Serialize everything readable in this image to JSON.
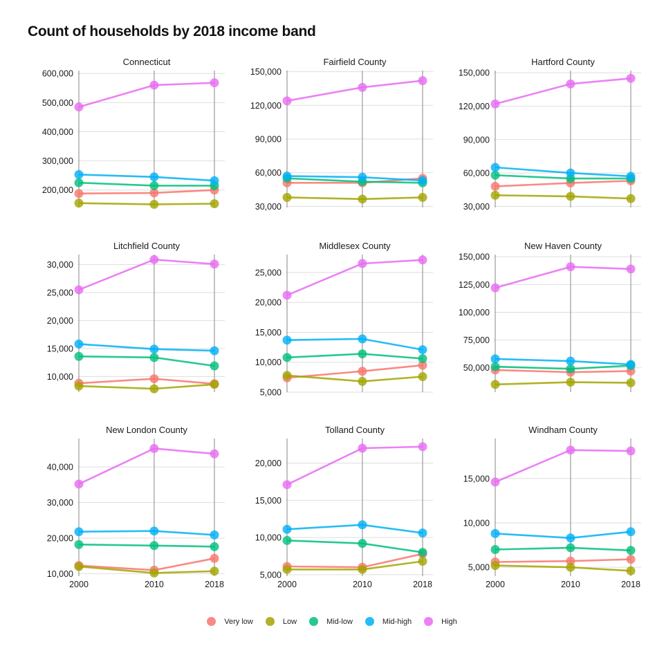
{
  "title": "Count of households by 2018 income band",
  "legend": [
    {
      "name": "Very low",
      "color": "#F8766D"
    },
    {
      "name": "Low",
      "color": "#A3A500"
    },
    {
      "name": "Mid-low",
      "color": "#00BF7D"
    },
    {
      "name": "Mid-high",
      "color": "#00B0F6"
    },
    {
      "name": "High",
      "color": "#E76BF3"
    }
  ],
  "chart_data": {
    "type": "line",
    "layout": "facet_wrap 3x3, free y scales",
    "x": [
      "2000",
      "2010",
      "2018"
    ],
    "legend_position": "bottom",
    "grid": "horizontal major gridlines, vertical lines at x ticks",
    "panels": [
      {
        "name": "Connecticut",
        "yticks": [
          200000,
          300000,
          400000,
          500000,
          600000
        ],
        "ylim": [
          140000,
          610000
        ],
        "series": [
          {
            "name": "Very low",
            "values": [
              188000,
              190000,
              200000
            ]
          },
          {
            "name": "Low",
            "values": [
              155000,
              151000,
              153000
            ]
          },
          {
            "name": "Mid-low",
            "values": [
              225000,
              215000,
              215000
            ]
          },
          {
            "name": "Mid-high",
            "values": [
              253000,
              245000,
              232000
            ]
          },
          {
            "name": "High",
            "values": [
              485000,
              560000,
              568000
            ]
          }
        ]
      },
      {
        "name": "Fairfield County",
        "yticks": [
          30000,
          60000,
          90000,
          120000,
          150000
        ],
        "ylim": [
          29000,
          151000
        ],
        "series": [
          {
            "name": "Very low",
            "values": [
              51000,
              51000,
              55000
            ]
          },
          {
            "name": "Low",
            "values": [
              38000,
              36500,
              38000
            ]
          },
          {
            "name": "Mid-low",
            "values": [
              55000,
              52000,
              51000
            ]
          },
          {
            "name": "Mid-high",
            "values": [
              57000,
              56000,
              53000
            ]
          },
          {
            "name": "High",
            "values": [
              124000,
              136000,
              142000
            ]
          }
        ]
      },
      {
        "name": "Hartford County",
        "yticks": [
          30000,
          60000,
          90000,
          120000,
          150000
        ],
        "ylim": [
          29000,
          152000
        ],
        "series": [
          {
            "name": "Very low",
            "values": [
              48000,
              51000,
              53000
            ]
          },
          {
            "name": "Low",
            "values": [
              40000,
              39000,
              37000
            ]
          },
          {
            "name": "Mid-low",
            "values": [
              58000,
              55000,
              55000
            ]
          },
          {
            "name": "Mid-high",
            "values": [
              65000,
              60000,
              57000
            ]
          },
          {
            "name": "High",
            "values": [
              122000,
              140000,
              145000
            ]
          }
        ]
      },
      {
        "name": "Litchfield County",
        "yticks": [
          10000,
          15000,
          20000,
          25000,
          30000
        ],
        "ylim": [
          7200,
          31800
        ],
        "series": [
          {
            "name": "Very low",
            "values": [
              8800,
              9600,
              8700
            ]
          },
          {
            "name": "Low",
            "values": [
              8300,
              7800,
              8600
            ]
          },
          {
            "name": "Mid-low",
            "values": [
              13600,
              13400,
              11900
            ]
          },
          {
            "name": "Mid-high",
            "values": [
              15800,
              14900,
              14600
            ]
          },
          {
            "name": "High",
            "values": [
              25500,
              30900,
              30100
            ]
          }
        ]
      },
      {
        "name": "Middlesex County",
        "yticks": [
          5000,
          10000,
          15000,
          20000,
          25000
        ],
        "ylim": [
          5000,
          28000
        ],
        "series": [
          {
            "name": "Very low",
            "values": [
              7400,
              8500,
              9500
            ]
          },
          {
            "name": "Low",
            "values": [
              7800,
              6800,
              7600
            ]
          },
          {
            "name": "Mid-low",
            "values": [
              10800,
              11400,
              10600
            ]
          },
          {
            "name": "Mid-high",
            "values": [
              13700,
              13900,
              12100
            ]
          },
          {
            "name": "High",
            "values": [
              21200,
              26500,
              27100
            ]
          }
        ]
      },
      {
        "name": "New Haven County",
        "yticks": [
          50000,
          75000,
          100000,
          125000,
          150000
        ],
        "ylim": [
          28000,
          152000
        ],
        "series": [
          {
            "name": "Very low",
            "values": [
              48000,
              46000,
              47000
            ]
          },
          {
            "name": "Low",
            "values": [
              35000,
              37000,
              36500
            ]
          },
          {
            "name": "Mid-low",
            "values": [
              51000,
              49000,
              52000
            ]
          },
          {
            "name": "Mid-high",
            "values": [
              58000,
              56000,
              53000
            ]
          },
          {
            "name": "High",
            "values": [
              122000,
              141000,
              139000
            ]
          }
        ]
      },
      {
        "name": "New London County",
        "yticks": [
          10000,
          20000,
          30000,
          40000
        ],
        "ylim": [
          9300,
          48000
        ],
        "series": [
          {
            "name": "Very low",
            "values": [
              12300,
              11000,
              14300
            ]
          },
          {
            "name": "Low",
            "values": [
              12000,
              10200,
              10700
            ]
          },
          {
            "name": "Mid-low",
            "values": [
              18200,
              17900,
              17600
            ]
          },
          {
            "name": "Mid-high",
            "values": [
              21800,
              22000,
              20900
            ]
          },
          {
            "name": "High",
            "values": [
              35200,
              45200,
              43700
            ]
          }
        ]
      },
      {
        "name": "Tolland County",
        "yticks": [
          5000,
          10000,
          15000,
          20000
        ],
        "ylim": [
          4800,
          23300
        ],
        "series": [
          {
            "name": "Very low",
            "values": [
              6100,
              6000,
              7800
            ]
          },
          {
            "name": "Low",
            "values": [
              5700,
              5700,
              6800
            ]
          },
          {
            "name": "Mid-low",
            "values": [
              9600,
              9200,
              8000
            ]
          },
          {
            "name": "Mid-high",
            "values": [
              11100,
              11700,
              10600
            ]
          },
          {
            "name": "High",
            "values": [
              17100,
              22000,
              22200
            ]
          }
        ]
      },
      {
        "name": "Windham County",
        "yticks": [
          5000,
          10000,
          15000
        ],
        "ylim": [
          4000,
          19500
        ],
        "series": [
          {
            "name": "Very low",
            "values": [
              5600,
              5700,
              5900
            ]
          },
          {
            "name": "Low",
            "values": [
              5200,
              5000,
              4600
            ]
          },
          {
            "name": "Mid-low",
            "values": [
              7000,
              7200,
              6900
            ]
          },
          {
            "name": "Mid-high",
            "values": [
              8800,
              8300,
              9000
            ]
          },
          {
            "name": "High",
            "values": [
              14600,
              18200,
              18100
            ]
          }
        ]
      }
    ]
  }
}
